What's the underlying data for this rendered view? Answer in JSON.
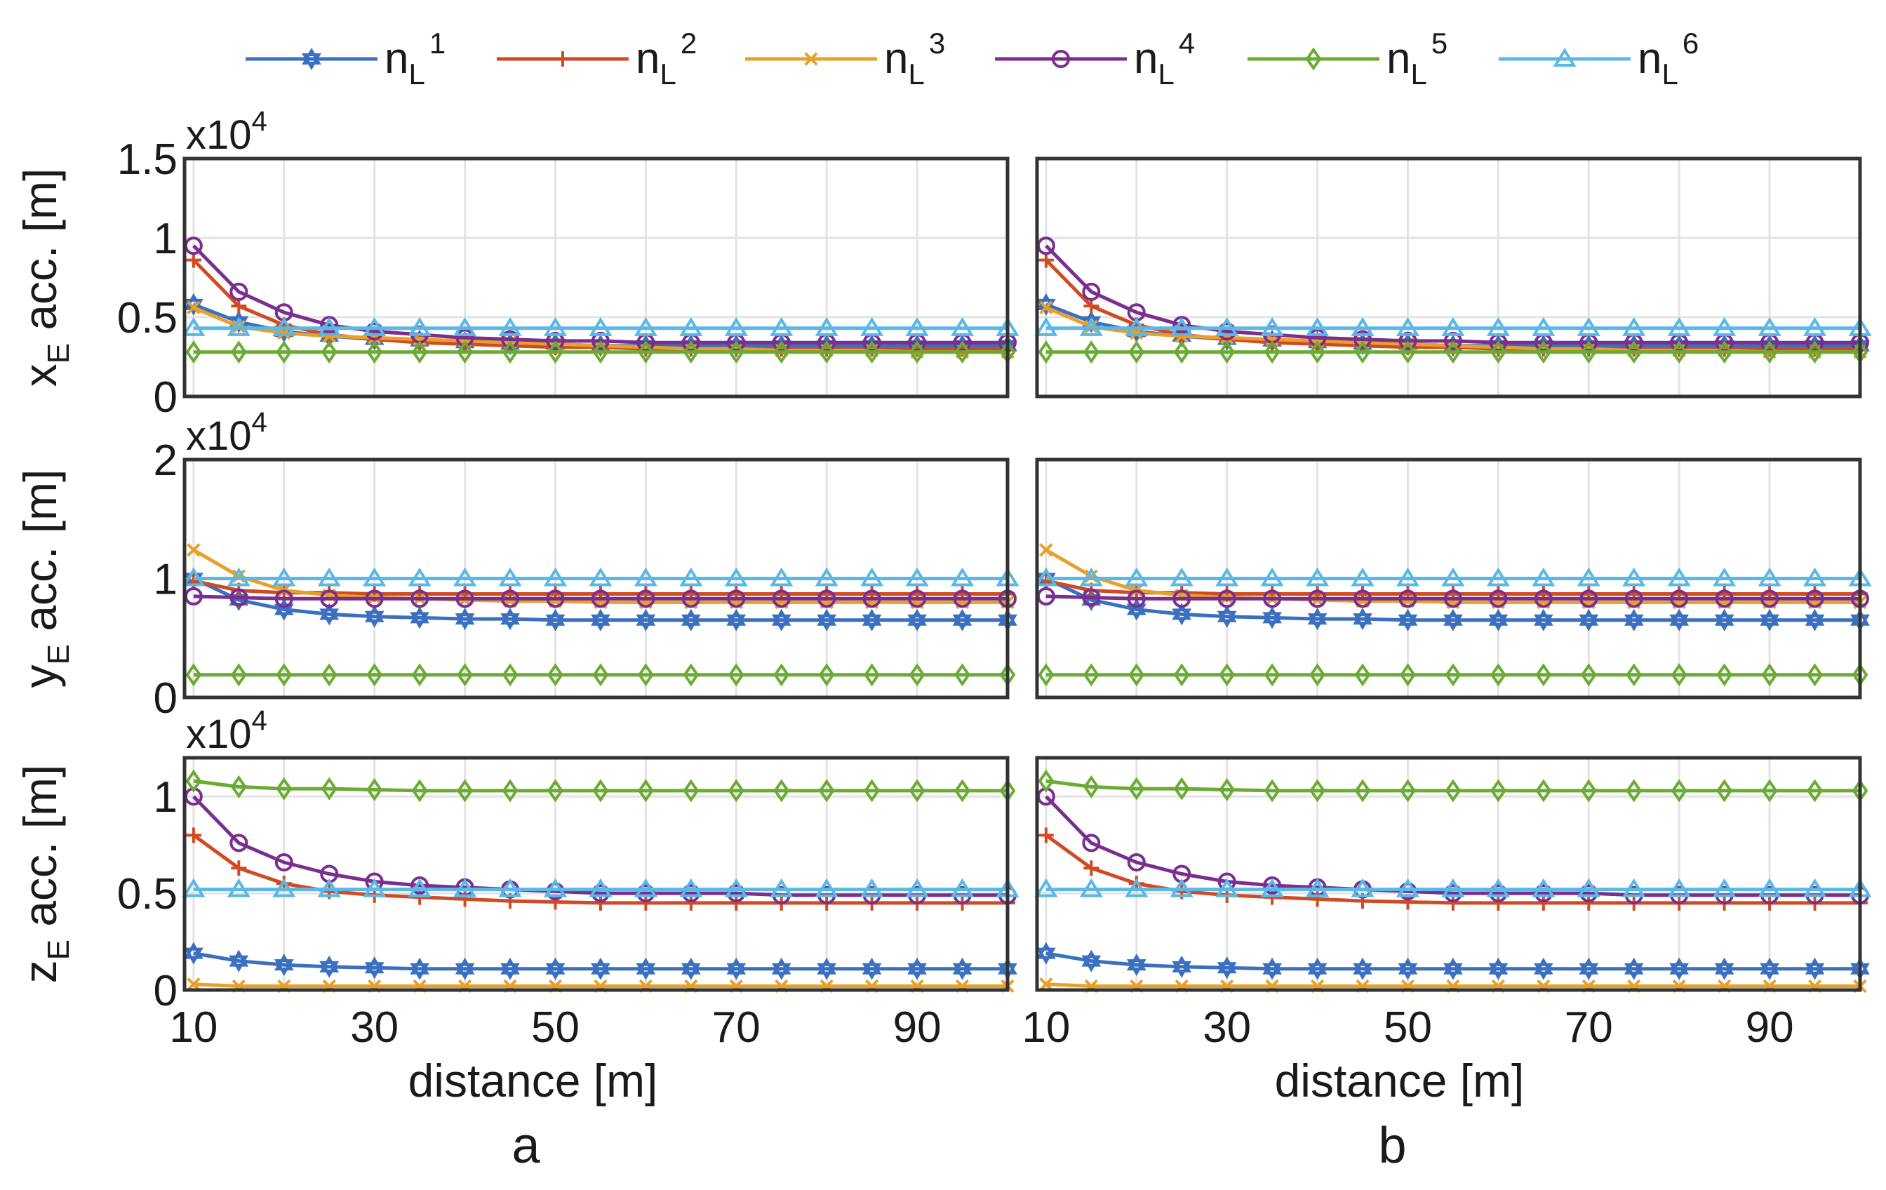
{
  "chart_data": {
    "type": "line",
    "description_labels": [
      "a",
      "b"
    ],
    "x": [
      10,
      15,
      20,
      25,
      30,
      35,
      40,
      45,
      50,
      55,
      60,
      65,
      70,
      75,
      80,
      85,
      90,
      95,
      100
    ],
    "xlim": [
      9,
      100
    ],
    "xticks": [
      10,
      30,
      50,
      70,
      90
    ],
    "xlabel": "distance [m]",
    "legend": {
      "placement": "top",
      "entries": [
        {
          "id": "n1",
          "base": "n",
          "sub": "L",
          "sup": "1",
          "color": "#3a70bf",
          "marker": "hexagram"
        },
        {
          "id": "n2",
          "base": "n",
          "sub": "L",
          "sup": "2",
          "color": "#d04a23",
          "marker": "plus"
        },
        {
          "id": "n3",
          "base": "n",
          "sub": "L",
          "sup": "3",
          "color": "#e8a02a",
          "marker": "x"
        },
        {
          "id": "n4",
          "base": "n",
          "sub": "L",
          "sup": "4",
          "color": "#7a2e8f",
          "marker": "circle"
        },
        {
          "id": "n5",
          "base": "n",
          "sub": "L",
          "sup": "5",
          "color": "#6aab34",
          "marker": "diamond"
        },
        {
          "id": "n6",
          "base": "n",
          "sub": "L",
          "sup": "6",
          "color": "#5bb8e6",
          "marker": "triangle"
        }
      ]
    },
    "rows": [
      {
        "ylabel_main": "x",
        "ylabel_sub": "E",
        "ylabel_rest": " acc. [m]",
        "exponent_base": "x10",
        "exponent_power": "4",
        "ylim": [
          0,
          1.5
        ],
        "yticks": [
          0,
          0.5,
          1,
          1.5
        ],
        "ytick_labels": [
          "0",
          "0.5",
          "1",
          "1.5"
        ],
        "series": [
          {
            "id": "n1",
            "values": [
              0.58,
              0.47,
              0.41,
              0.38,
              0.36,
              0.35,
              0.34,
              0.33,
              0.33,
              0.32,
              0.32,
              0.32,
              0.32,
              0.32,
              0.32,
              0.32,
              0.32,
              0.32,
              0.32
            ]
          },
          {
            "id": "n2",
            "values": [
              0.86,
              0.57,
              0.45,
              0.39,
              0.36,
              0.34,
              0.33,
              0.32,
              0.31,
              0.31,
              0.3,
              0.3,
              0.3,
              0.3,
              0.3,
              0.3,
              0.3,
              0.3,
              0.3
            ]
          },
          {
            "id": "n3",
            "values": [
              0.56,
              0.44,
              0.4,
              0.38,
              0.37,
              0.36,
              0.35,
              0.34,
              0.33,
              0.32,
              0.31,
              0.3,
              0.3,
              0.29,
              0.29,
              0.29,
              0.28,
              0.28,
              0.28
            ]
          },
          {
            "id": "n4",
            "values": [
              0.95,
              0.66,
              0.53,
              0.45,
              0.41,
              0.39,
              0.37,
              0.36,
              0.35,
              0.35,
              0.34,
              0.34,
              0.34,
              0.34,
              0.34,
              0.34,
              0.34,
              0.34,
              0.34
            ]
          },
          {
            "id": "n5",
            "values": [
              0.28,
              0.28,
              0.28,
              0.28,
              0.28,
              0.28,
              0.28,
              0.28,
              0.28,
              0.28,
              0.28,
              0.28,
              0.28,
              0.28,
              0.28,
              0.28,
              0.28,
              0.28,
              0.28
            ]
          },
          {
            "id": "n6",
            "values": [
              0.43,
              0.43,
              0.43,
              0.43,
              0.43,
              0.43,
              0.43,
              0.43,
              0.43,
              0.43,
              0.43,
              0.43,
              0.43,
              0.43,
              0.43,
              0.43,
              0.43,
              0.43,
              0.43
            ]
          }
        ]
      },
      {
        "ylabel_main": "y",
        "ylabel_sub": "E",
        "ylabel_rest": " acc. [m]",
        "exponent_base": "x10",
        "exponent_power": "4",
        "ylim": [
          0,
          2
        ],
        "yticks": [
          0,
          1,
          2
        ],
        "ytick_labels": [
          "0",
          "1",
          "2"
        ],
        "series": [
          {
            "id": "n1",
            "values": [
              1.0,
              0.82,
              0.74,
              0.7,
              0.68,
              0.67,
              0.66,
              0.66,
              0.65,
              0.65,
              0.65,
              0.65,
              0.65,
              0.65,
              0.65,
              0.65,
              0.65,
              0.65,
              0.65
            ]
          },
          {
            "id": "n2",
            "values": [
              0.98,
              0.9,
              0.88,
              0.88,
              0.87,
              0.87,
              0.87,
              0.87,
              0.87,
              0.87,
              0.87,
              0.87,
              0.87,
              0.87,
              0.87,
              0.87,
              0.87,
              0.87,
              0.87
            ]
          },
          {
            "id": "n3",
            "values": [
              1.24,
              1.02,
              0.9,
              0.86,
              0.84,
              0.83,
              0.82,
              0.81,
              0.81,
              0.8,
              0.8,
              0.8,
              0.8,
              0.8,
              0.8,
              0.8,
              0.8,
              0.8,
              0.8
            ]
          },
          {
            "id": "n4",
            "values": [
              0.85,
              0.84,
              0.83,
              0.83,
              0.83,
              0.83,
              0.83,
              0.83,
              0.83,
              0.83,
              0.83,
              0.83,
              0.83,
              0.83,
              0.83,
              0.83,
              0.83,
              0.83,
              0.83
            ]
          },
          {
            "id": "n5",
            "values": [
              0.19,
              0.19,
              0.19,
              0.19,
              0.19,
              0.19,
              0.19,
              0.19,
              0.19,
              0.19,
              0.19,
              0.19,
              0.19,
              0.19,
              0.19,
              0.19,
              0.19,
              0.19,
              0.19
            ]
          },
          {
            "id": "n6",
            "values": [
              1.0,
              1.0,
              1.0,
              1.0,
              1.0,
              1.0,
              1.0,
              1.0,
              1.0,
              1.0,
              1.0,
              1.0,
              1.0,
              1.0,
              1.0,
              1.0,
              1.0,
              1.0,
              1.0
            ]
          }
        ]
      },
      {
        "ylabel_main": "z",
        "ylabel_sub": "E",
        "ylabel_rest": " acc. [m]",
        "exponent_base": "x10",
        "exponent_power": "4",
        "ylim": [
          0,
          1.2
        ],
        "yticks": [
          0,
          0.5,
          1
        ],
        "ytick_labels": [
          "0",
          "0.5",
          "1"
        ],
        "series": [
          {
            "id": "n1",
            "values": [
              0.19,
              0.15,
              0.13,
              0.12,
              0.115,
              0.11,
              0.11,
              0.11,
              0.11,
              0.11,
              0.11,
              0.11,
              0.11,
              0.11,
              0.11,
              0.11,
              0.11,
              0.11,
              0.11
            ]
          },
          {
            "id": "n2",
            "values": [
              0.8,
              0.63,
              0.55,
              0.51,
              0.49,
              0.48,
              0.47,
              0.46,
              0.455,
              0.45,
              0.45,
              0.45,
              0.45,
              0.45,
              0.45,
              0.45,
              0.45,
              0.45,
              0.45
            ]
          },
          {
            "id": "n3",
            "values": [
              0.03,
              0.02,
              0.02,
              0.02,
              0.02,
              0.02,
              0.02,
              0.02,
              0.02,
              0.02,
              0.02,
              0.02,
              0.02,
              0.02,
              0.02,
              0.02,
              0.02,
              0.02,
              0.02
            ]
          },
          {
            "id": "n4",
            "values": [
              1.0,
              0.76,
              0.66,
              0.6,
              0.56,
              0.54,
              0.53,
              0.52,
              0.51,
              0.5,
              0.5,
              0.5,
              0.5,
              0.49,
              0.49,
              0.49,
              0.49,
              0.49,
              0.49
            ]
          },
          {
            "id": "n5",
            "values": [
              1.08,
              1.05,
              1.04,
              1.04,
              1.035,
              1.03,
              1.03,
              1.03,
              1.03,
              1.03,
              1.03,
              1.03,
              1.03,
              1.03,
              1.03,
              1.03,
              1.03,
              1.03,
              1.03
            ]
          },
          {
            "id": "n6",
            "values": [
              0.52,
              0.52,
              0.52,
              0.52,
              0.52,
              0.52,
              0.52,
              0.52,
              0.52,
              0.52,
              0.52,
              0.52,
              0.52,
              0.52,
              0.52,
              0.52,
              0.52,
              0.52,
              0.52
            ]
          }
        ]
      }
    ]
  }
}
